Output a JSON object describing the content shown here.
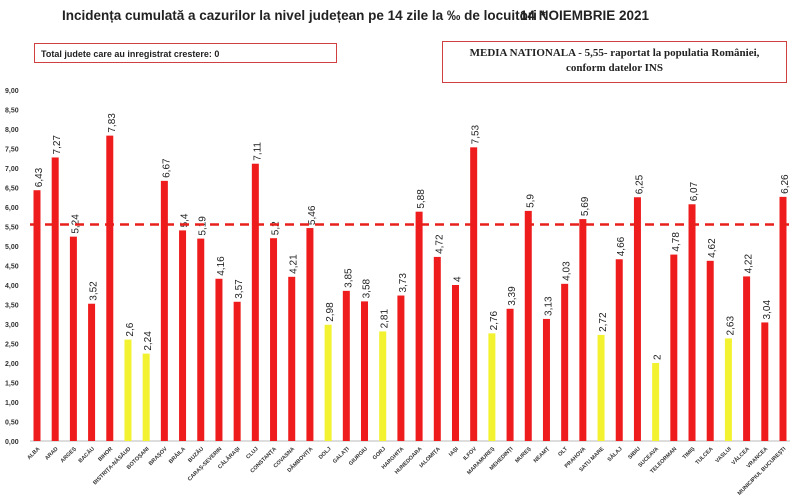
{
  "chart_data": {
    "type": "bar",
    "title": "Incidența cumulată a cazurilor la nivel județean pe 14 zile la ‰ de locuitori *",
    "date": "14 NOIEMBRIE 2021",
    "note": "Total judete care au inregistrat crestere: 0",
    "reference_note_line1": "MEDIA NATIONALA - 5,55-  raportat la populatia României,",
    "reference_note_line2": "conform datelor INS",
    "reference_line": {
      "value": 5.55,
      "color": "#e8201c",
      "style": "dashed"
    },
    "ylim": [
      0,
      9
    ],
    "yticks": [
      "0,00",
      "0,50",
      "1,00",
      "1,50",
      "2,00",
      "2,50",
      "3,00",
      "3,50",
      "4,00",
      "4,50",
      "5,00",
      "5,50",
      "6,00",
      "6,50",
      "7,00",
      "7,50",
      "8,00",
      "8,50",
      "9,00"
    ],
    "grid": false,
    "colors": {
      "above": "#ee1c1c",
      "below3": "#f2f230"
    },
    "categories": [
      "ALBA",
      "ARAD",
      "ARGEȘ",
      "BACĂU",
      "BIHOR",
      "BISTRIȚA-NĂSĂUD",
      "BOTOȘANI",
      "BRAȘOV",
      "BRĂILA",
      "BUZĂU",
      "CARAȘ-SEVERIN",
      "CĂLĂRAȘI",
      "CLUJ",
      "CONSTANȚA",
      "COVASNA",
      "DÂMBOVIȚA",
      "DOLJ",
      "GALAȚI",
      "GIURGIU",
      "GORJ",
      "HARGHITA",
      "HUNEDOARA",
      "IALOMIȚA",
      "IAȘI",
      "ILFOV",
      "MARAMUREȘ",
      "MEHEDINȚI",
      "MUREȘ",
      "NEAMȚ",
      "OLT",
      "PRAHOVA",
      "SATU MARE",
      "SĂLAJ",
      "SIBIU",
      "SUCEAVA",
      "TELEORMAN",
      "TIMIȘ",
      "TULCEA",
      "VASLUI",
      "VÂLCEA",
      "VRANCEA",
      "MUNICIPIUL BUCUREȘTI"
    ],
    "values": [
      6.43,
      7.27,
      5.24,
      3.52,
      7.83,
      2.6,
      2.24,
      6.67,
      5.4,
      5.19,
      4.16,
      3.57,
      7.11,
      5.2,
      4.21,
      5.46,
      2.98,
      3.85,
      3.58,
      2.81,
      3.73,
      5.88,
      4.72,
      4,
      7.53,
      2.76,
      3.39,
      5.9,
      3.13,
      4.03,
      5.69,
      2.72,
      4.66,
      6.25,
      2,
      4.78,
      6.07,
      4.62,
      2.63,
      4.22,
      3.04,
      6.26
    ],
    "data_labels": [
      "6,43",
      "7,27",
      "5,24",
      "3,52",
      "7,83",
      "2,6",
      "2,24",
      "6,67",
      "5,4",
      "5,19",
      "4,16",
      "3,57",
      "7,11",
      "5,2",
      "4,21",
      "5,46",
      "2,98",
      "3,85",
      "3,58",
      "2,81",
      "3,73",
      "5,88",
      "4,72",
      "4",
      "7,53",
      "2,76",
      "3,39",
      "5,9",
      "3,13",
      "4,03",
      "5,69",
      "2,72",
      "4,66",
      "6,25",
      "2",
      "4,78",
      "6,07",
      "4,62",
      "2,63",
      "4,22",
      "3,04",
      "6,26"
    ]
  }
}
